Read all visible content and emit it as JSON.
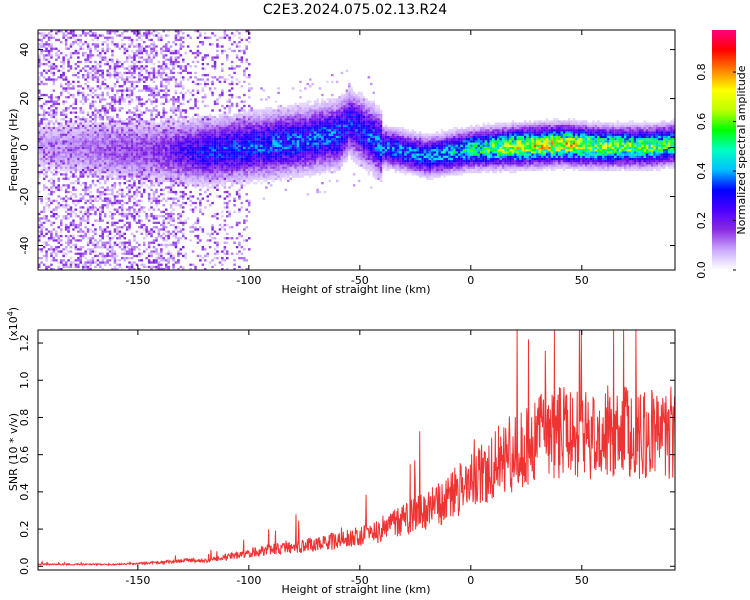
{
  "title": "C2E3.2024.075.02.13.R24",
  "chart_data": [
    {
      "type": "heatmap",
      "xlabel": "Height of straight line (km)",
      "ylabel": "Frequency (Hz)",
      "xlim": [
        -195,
        92
      ],
      "ylim": [
        -50,
        48
      ],
      "xticks": [
        -150,
        -100,
        -50,
        0,
        50
      ],
      "yticks": [
        -40,
        -20,
        0,
        20,
        40
      ],
      "colorbar": {
        "label": "Normalized spectral amplitude",
        "range": [
          0.0,
          0.97
        ],
        "ticks": [
          0.0,
          0.2,
          0.4,
          0.6,
          0.8
        ],
        "colors": [
          "#ffffff",
          "#ccaaff",
          "#8a2be2",
          "#4b00ff",
          "#0000ff",
          "#00c0ff",
          "#00ffc0",
          "#00ff00",
          "#c0ff00",
          "#ffff00",
          "#ff8000",
          "#ff0000",
          "#ff0080"
        ]
      },
      "ridge": [
        {
          "x": -190,
          "freq": 0,
          "amp": 0.1
        },
        {
          "x": -140,
          "freq": -2,
          "amp": 0.2
        },
        {
          "x": -120,
          "freq": -2,
          "amp": 0.35
        },
        {
          "x": -100,
          "freq": 0,
          "amp": 0.38
        },
        {
          "x": -80,
          "freq": 2,
          "amp": 0.4
        },
        {
          "x": -60,
          "freq": 5,
          "amp": 0.4
        },
        {
          "x": -55,
          "freq": 10,
          "amp": 0.35
        },
        {
          "x": -40,
          "freq": 0,
          "amp": 0.42
        },
        {
          "x": -20,
          "freq": -4,
          "amp": 0.45
        },
        {
          "x": 0,
          "freq": -1,
          "amp": 0.55
        },
        {
          "x": 20,
          "freq": 0,
          "amp": 0.75
        },
        {
          "x": 40,
          "freq": 1,
          "amp": 0.8
        },
        {
          "x": 60,
          "freq": 0,
          "amp": 0.7
        },
        {
          "x": 80,
          "freq": 0,
          "amp": 0.65
        },
        {
          "x": 90,
          "freq": 1,
          "amp": 0.6
        }
      ]
    },
    {
      "type": "line",
      "xlabel": "Height of straight line (km)",
      "ylabel": "SNR (10 * v/v)",
      "y_multiplier": "(x10",
      "y_multiplier_exp": "4",
      "y_multiplier_close": ")",
      "xlim": [
        -195,
        92
      ],
      "ylim": [
        -0.02,
        1.27
      ],
      "xticks": [
        -150,
        -100,
        -50,
        0,
        50
      ],
      "yticks": [
        0.0,
        0.2,
        0.4,
        0.6,
        0.8,
        1.0,
        1.2
      ],
      "color": "#ee3333",
      "x": [
        -195,
        -180,
        -160,
        -140,
        -130,
        -120,
        -110,
        -100,
        -90,
        -80,
        -70,
        -60,
        -50,
        -40,
        -30,
        -20,
        -10,
        -5,
        0,
        10,
        20,
        30,
        40,
        50,
        60,
        70,
        80,
        92
      ],
      "y": [
        0.01,
        0.01,
        0.01,
        0.02,
        0.03,
        0.03,
        0.05,
        0.07,
        0.09,
        0.1,
        0.12,
        0.14,
        0.16,
        0.2,
        0.25,
        0.3,
        0.36,
        0.42,
        0.46,
        0.55,
        0.62,
        0.7,
        0.72,
        0.7,
        0.72,
        0.72,
        0.7,
        0.72
      ]
    }
  ]
}
